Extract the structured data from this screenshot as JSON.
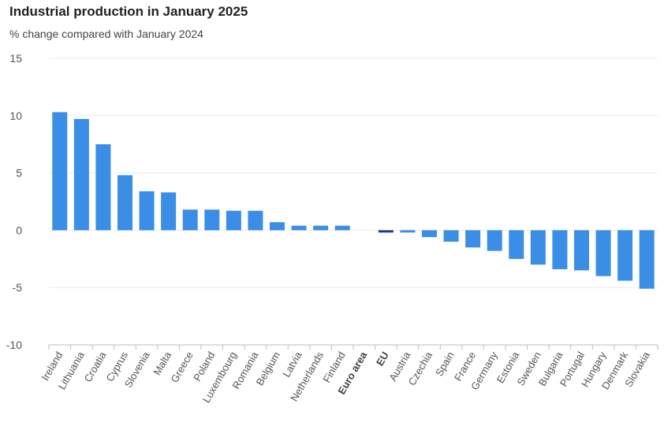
{
  "chart_data": {
    "type": "bar",
    "title": "Industrial production in January 2025",
    "subtitle": "% change compared with January 2024",
    "xlabel": "",
    "ylabel": "",
    "ylim": [
      -10,
      15
    ],
    "yticks": [
      15,
      10,
      5,
      0,
      -5,
      -10
    ],
    "grid": true,
    "categories": [
      "Ireland",
      "Lithuania",
      "Croatia",
      "Cyprus",
      "Slovenia",
      "Malta",
      "Greece",
      "Poland",
      "Luxembourg",
      "Romania",
      "Belgium",
      "Latvia",
      "Netherlands",
      "Finland",
      "Euro area",
      "EU",
      "Austria",
      "Czechia",
      "Spain",
      "France",
      "Germany",
      "Estonia",
      "Sweden",
      "Bulgaria",
      "Portugal",
      "Hungary",
      "Denmark",
      "Slovakia"
    ],
    "values": [
      10.3,
      9.7,
      7.5,
      4.8,
      3.4,
      3.3,
      1.8,
      1.8,
      1.7,
      1.7,
      0.7,
      0.4,
      0.4,
      0.4,
      0.0,
      -0.2,
      -0.2,
      -0.6,
      -1.0,
      -1.5,
      -1.8,
      -2.5,
      -3.0,
      -3.4,
      -3.5,
      -4.0,
      -4.4,
      -5.1
    ],
    "bold_categories": [
      "Euro area",
      "EU"
    ],
    "colors": {
      "bar": "#3a8ee6",
      "aggregate_bar": "#1a3a8a",
      "grid": "#ececec",
      "axis": "#bdbdbd"
    }
  }
}
